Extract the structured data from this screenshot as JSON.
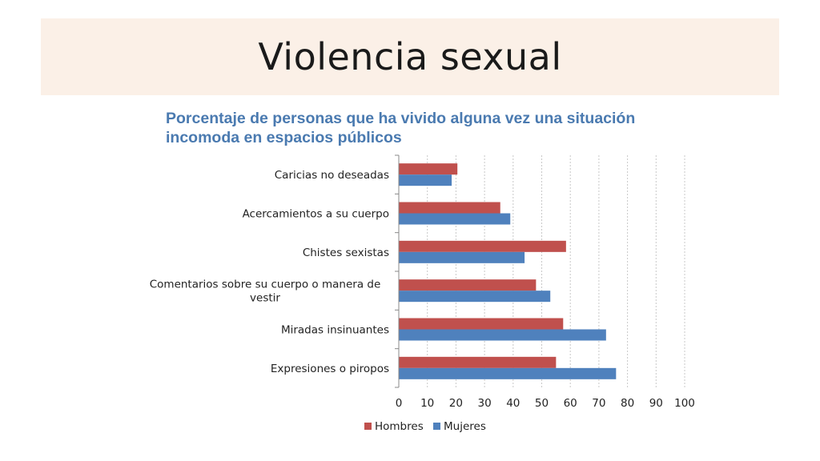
{
  "slide": {
    "title": "Violencia sexual"
  },
  "chart_data": {
    "type": "bar",
    "orientation": "horizontal",
    "title": "Porcentaje de personas que ha vivido alguna vez una situación incomoda en espacios públicos",
    "categories": [
      [
        "Caricias no deseadas"
      ],
      [
        "Acercamientos a su cuerpo"
      ],
      [
        "Chistes sexistas"
      ],
      [
        "Comentarios sobre su cuerpo o manera de",
        "vestir"
      ],
      [
        "Miradas insinuantes"
      ],
      [
        "Expresiones o piropos"
      ]
    ],
    "series": [
      {
        "name": "Hombres",
        "color": "#c0504d",
        "values": [
          20.5,
          35.5,
          58.5,
          48,
          57.5,
          55
        ]
      },
      {
        "name": "Mujeres",
        "color": "#4f81bd",
        "values": [
          18.5,
          39,
          44,
          53,
          72.5,
          76
        ]
      }
    ],
    "xlim": [
      0,
      100
    ],
    "xticks": [
      0,
      10,
      20,
      30,
      40,
      50,
      60,
      70,
      80,
      90,
      100
    ],
    "grid": "vertical dotted",
    "legend": "bottom"
  }
}
